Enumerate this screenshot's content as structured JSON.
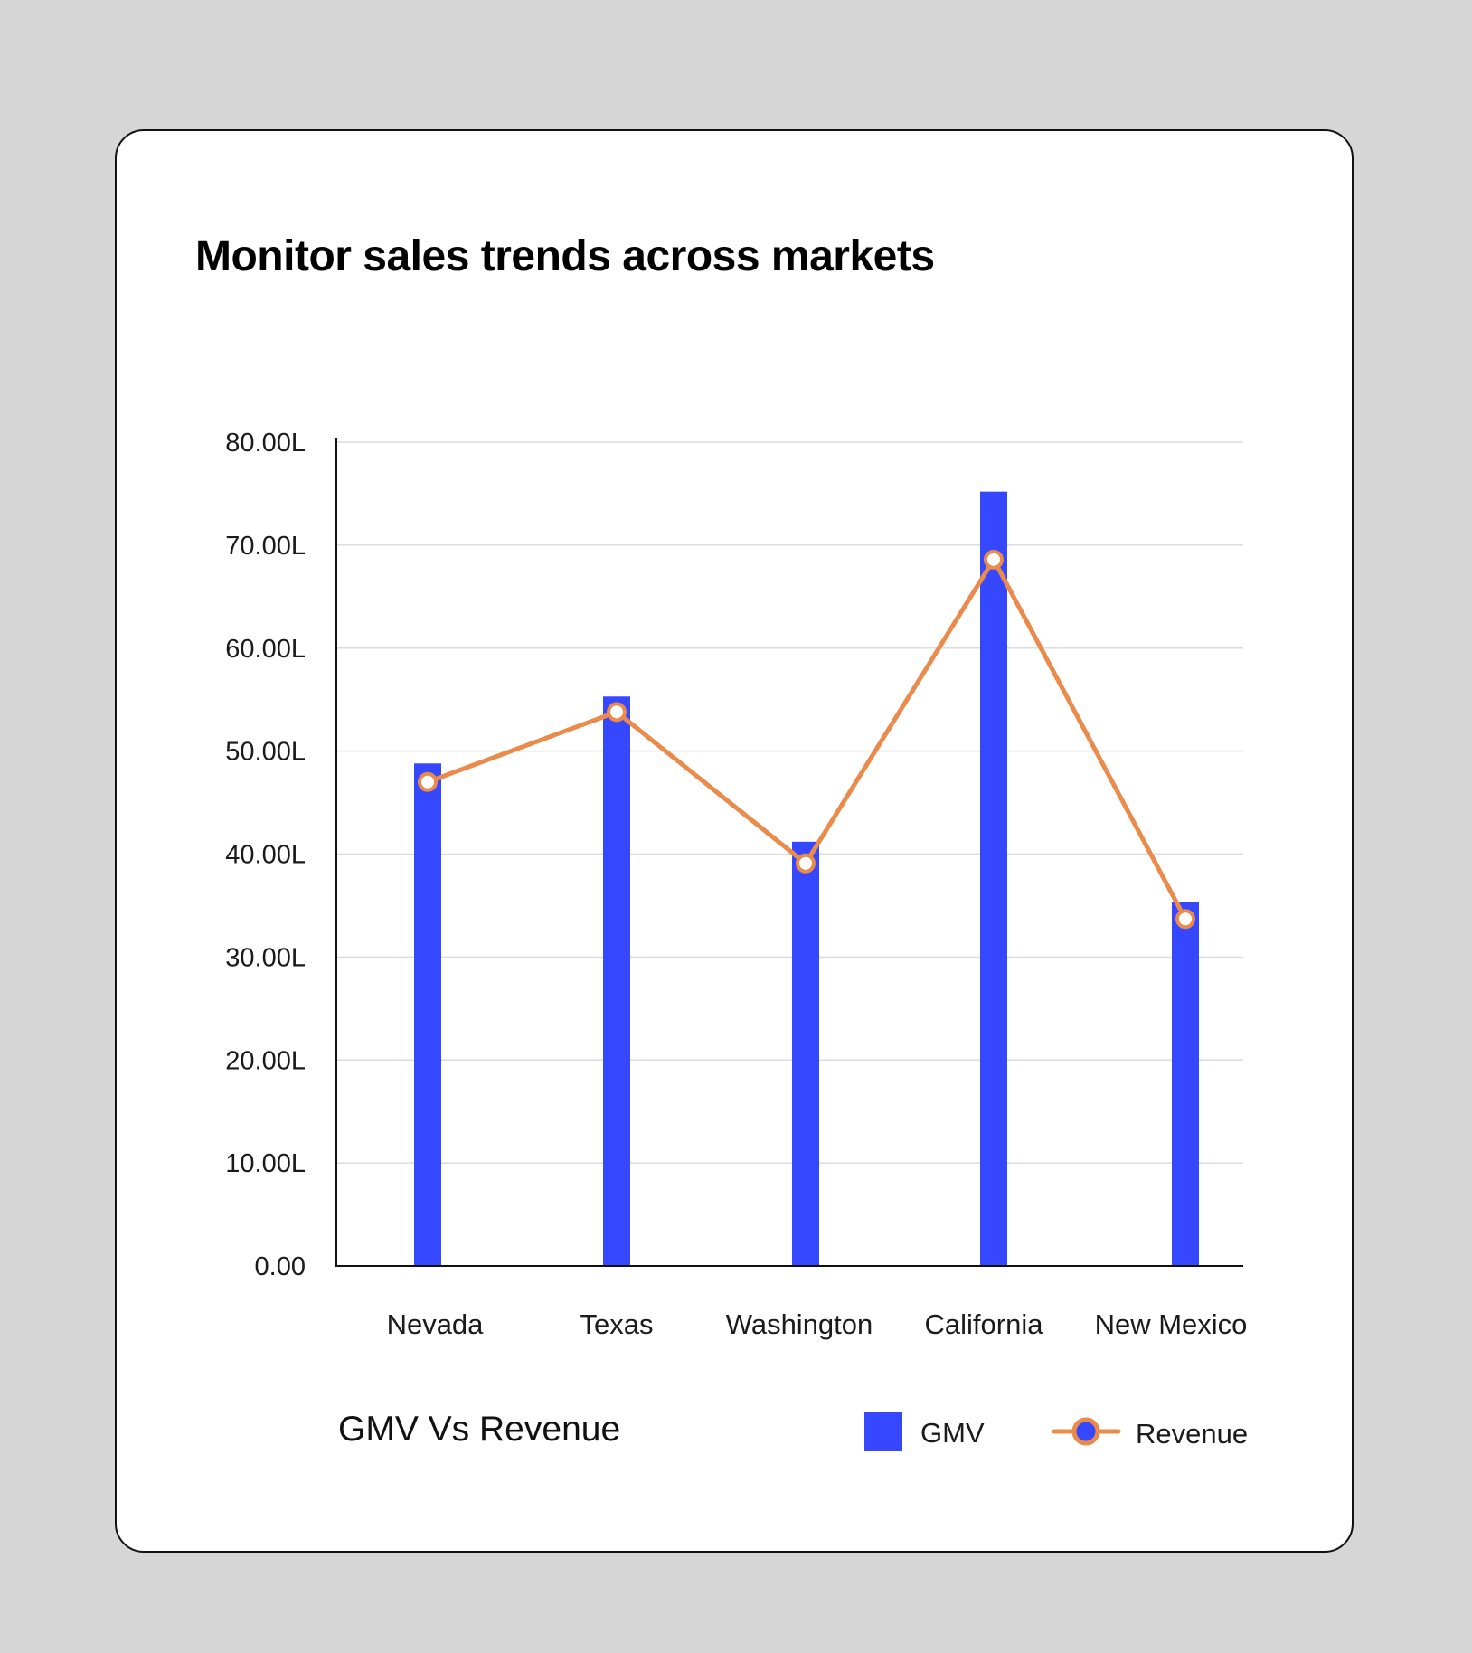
{
  "card": {
    "title": "Monitor sales trends across markets"
  },
  "chart_data": {
    "type": "bar",
    "title": "Monitor sales trends across markets",
    "caption": "GMV Vs Revenue",
    "categories": [
      "Nevada",
      "Texas",
      "Washington",
      "California",
      "New Mexico"
    ],
    "series": [
      {
        "name": "GMV",
        "type": "bar",
        "color": "#3548ff",
        "values": [
          48.8,
          55.3,
          41.2,
          75.2,
          35.3
        ]
      },
      {
        "name": "Revenue",
        "type": "line",
        "color": "#ea8a4b",
        "values": [
          47.0,
          53.8,
          39.1,
          68.6,
          33.7
        ]
      }
    ],
    "y_ticks": [
      "0.00",
      "10.00L",
      "20.00L",
      "30.00L",
      "40.00L",
      "50.00L",
      "60.00L",
      "70.00L",
      "80.00L"
    ],
    "ylim": [
      0,
      80
    ],
    "unit": "L",
    "grid": true,
    "legend_position": "bottom-right",
    "legend": [
      {
        "label": "GMV",
        "marker": "square",
        "color": "#3548ff"
      },
      {
        "label": "Revenue",
        "marker": "line-circle",
        "color": "#ea8a4b",
        "fill": "#3548ff"
      }
    ]
  }
}
